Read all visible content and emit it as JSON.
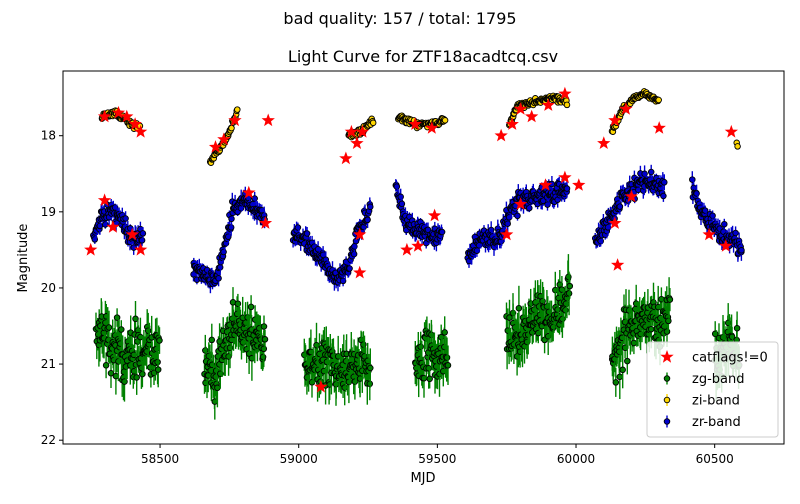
{
  "suptitle": "bad quality: 157 / total: 1795",
  "chart_data": {
    "type": "scatter",
    "title": "Light Curve for ZTF18acadtcq.csv",
    "xlabel": "MJD",
    "ylabel": "Magnitude",
    "xlim": [
      58150,
      60750
    ],
    "ylim": [
      22.05,
      17.15
    ],
    "y_inverted": true,
    "xticks": [
      58500,
      59000,
      59500,
      60000,
      60500
    ],
    "yticks": [
      18,
      19,
      20,
      21,
      22
    ],
    "grid": false,
    "legend_position": "lower-right",
    "colors": {
      "zg": "#008000",
      "zi": "#ffd700",
      "zr": "#0000cc",
      "catflags": "#ff0000",
      "edge": "#000000"
    },
    "legend": [
      {
        "key": "catflags",
        "label": "catflags!=0",
        "marker": "star"
      },
      {
        "key": "zg",
        "label": "zg-band",
        "marker": "errorbar-circle"
      },
      {
        "key": "zi",
        "label": "zi-band",
        "marker": "errorbar-circle"
      },
      {
        "key": "zr",
        "label": "zr-band",
        "marker": "errorbar-circle"
      }
    ],
    "series": [
      {
        "name": "zr-band",
        "key": "zr",
        "noise": 0.12,
        "err": 0.08,
        "segments": [
          [
            [
              58260,
              19.35
            ],
            [
              58290,
              19.05
            ],
            [
              58330,
              19.0
            ],
            [
              58370,
              19.2
            ],
            [
              58400,
              19.35
            ],
            [
              58440,
              19.3
            ]
          ],
          [
            [
              58620,
              19.7
            ],
            [
              58660,
              19.85
            ],
            [
              58700,
              19.9
            ],
            [
              58730,
              19.5
            ],
            [
              58760,
              19.0
            ],
            [
              58800,
              18.85
            ],
            [
              58840,
              18.95
            ],
            [
              58880,
              19.1
            ]
          ],
          [
            [
              58980,
              19.3
            ],
            [
              59020,
              19.35
            ],
            [
              59080,
              19.6
            ],
            [
              59140,
              19.9
            ],
            [
              59180,
              19.7
            ],
            [
              59210,
              19.3
            ],
            [
              59240,
              19.1
            ],
            [
              59260,
              19.0
            ]
          ],
          [
            [
              59350,
              18.7
            ],
            [
              59380,
              19.1
            ],
            [
              59420,
              19.25
            ],
            [
              59480,
              19.3
            ],
            [
              59520,
              19.3
            ]
          ],
          [
            [
              59610,
              19.6
            ],
            [
              59670,
              19.3
            ],
            [
              59720,
              19.4
            ],
            [
              59760,
              19.0
            ],
            [
              59800,
              18.85
            ],
            [
              59860,
              18.8
            ],
            [
              59940,
              18.75
            ],
            [
              59970,
              18.7
            ]
          ],
          [
            [
              60070,
              19.4
            ],
            [
              60120,
              19.1
            ],
            [
              60170,
              18.8
            ],
            [
              60230,
              18.6
            ],
            [
              60280,
              18.65
            ],
            [
              60320,
              18.7
            ]
          ],
          [
            [
              60420,
              18.7
            ],
            [
              60470,
              19.1
            ],
            [
              60520,
              19.3
            ],
            [
              60570,
              19.4
            ],
            [
              60600,
              19.5
            ]
          ]
        ]
      },
      {
        "name": "zg-band",
        "key": "zg",
        "noise": 0.3,
        "err": 0.2,
        "segments": [
          [
            [
              58270,
              20.5
            ],
            [
              58320,
              20.7
            ],
            [
              58370,
              20.9
            ],
            [
              58420,
              20.8
            ],
            [
              58500,
              20.85
            ]
          ],
          [
            [
              58660,
              21.0
            ],
            [
              58700,
              21.2
            ],
            [
              58740,
              20.7
            ],
            [
              58780,
              20.5
            ],
            [
              58830,
              20.6
            ],
            [
              58880,
              20.7
            ]
          ],
          [
            [
              59020,
              21.0
            ],
            [
              59080,
              21.0
            ],
            [
              59140,
              21.1
            ],
            [
              59200,
              21.0
            ],
            [
              59260,
              21.0
            ]
          ],
          [
            [
              59420,
              21.0
            ],
            [
              59480,
              20.9
            ],
            [
              59540,
              21.0
            ]
          ],
          [
            [
              59750,
              20.7
            ],
            [
              59820,
              20.5
            ],
            [
              59880,
              20.4
            ],
            [
              59940,
              20.3
            ],
            [
              59980,
              20.0
            ]
          ],
          [
            [
              60130,
              21.0
            ],
            [
              60180,
              20.6
            ],
            [
              60240,
              20.4
            ],
            [
              60300,
              20.5
            ],
            [
              60340,
              20.2
            ]
          ],
          [
            [
              60500,
              20.9
            ],
            [
              60560,
              20.8
            ],
            [
              60590,
              20.9
            ]
          ]
        ]
      },
      {
        "name": "zi-band",
        "key": "zi",
        "noise": 0.04,
        "err": 0.03,
        "segments": [
          [
            [
              58290,
              17.75
            ],
            [
              58340,
              17.7
            ],
            [
              58380,
              17.8
            ],
            [
              58430,
              17.9
            ]
          ],
          [
            [
              58680,
              18.35
            ],
            [
              58720,
              18.15
            ],
            [
              58750,
              17.95
            ],
            [
              58780,
              17.65
            ]
          ],
          [
            [
              59180,
              18.0
            ],
            [
              59220,
              17.95
            ],
            [
              59270,
              17.8
            ]
          ],
          [
            [
              59360,
              17.75
            ],
            [
              59420,
              17.85
            ],
            [
              59470,
              17.85
            ],
            [
              59530,
              17.8
            ]
          ],
          [
            [
              59760,
              17.85
            ],
            [
              59790,
              17.6
            ],
            [
              59850,
              17.55
            ],
            [
              59910,
              17.5
            ],
            [
              59970,
              17.55
            ]
          ],
          [
            [
              60130,
              17.95
            ],
            [
              60170,
              17.65
            ],
            [
              60210,
              17.5
            ],
            [
              60250,
              17.45
            ],
            [
              60300,
              17.55
            ]
          ],
          [
            [
              60580,
              18.1
            ],
            [
              60585,
              18.15
            ]
          ]
        ]
      }
    ],
    "catflags_points": [
      [
        58300,
        17.75
      ],
      [
        58350,
        17.7
      ],
      [
        58380,
        17.75
      ],
      [
        58410,
        17.85
      ],
      [
        58430,
        17.95
      ],
      [
        58700,
        18.15
      ],
      [
        58730,
        18.05
      ],
      [
        58770,
        17.8
      ],
      [
        58890,
        17.8
      ],
      [
        59170,
        18.3
      ],
      [
        59190,
        17.95
      ],
      [
        59210,
        18.1
      ],
      [
        59230,
        17.95
      ],
      [
        59420,
        17.85
      ],
      [
        59480,
        17.9
      ],
      [
        59730,
        18.0
      ],
      [
        59770,
        17.85
      ],
      [
        59800,
        17.65
      ],
      [
        59840,
        17.75
      ],
      [
        59900,
        17.6
      ],
      [
        59960,
        17.45
      ],
      [
        60100,
        18.1
      ],
      [
        60140,
        17.8
      ],
      [
        60180,
        17.65
      ],
      [
        60300,
        17.9
      ],
      [
        60560,
        17.95
      ],
      [
        58300,
        18.85
      ],
      [
        58330,
        19.2
      ],
      [
        58400,
        19.3
      ],
      [
        58430,
        19.5
      ],
      [
        58820,
        18.75
      ],
      [
        58880,
        19.15
      ],
      [
        59220,
        19.3
      ],
      [
        59490,
        19.05
      ],
      [
        59390,
        19.5
      ],
      [
        59430,
        19.45
      ],
      [
        59750,
        19.3
      ],
      [
        59800,
        18.9
      ],
      [
        59890,
        18.65
      ],
      [
        59960,
        18.55
      ],
      [
        60010,
        18.65
      ],
      [
        60140,
        19.15
      ],
      [
        60150,
        19.7
      ],
      [
        60200,
        18.8
      ],
      [
        60480,
        19.3
      ],
      [
        60540,
        19.45
      ],
      [
        59080,
        21.3
      ],
      [
        59220,
        19.8
      ],
      [
        58250,
        19.5
      ]
    ]
  }
}
